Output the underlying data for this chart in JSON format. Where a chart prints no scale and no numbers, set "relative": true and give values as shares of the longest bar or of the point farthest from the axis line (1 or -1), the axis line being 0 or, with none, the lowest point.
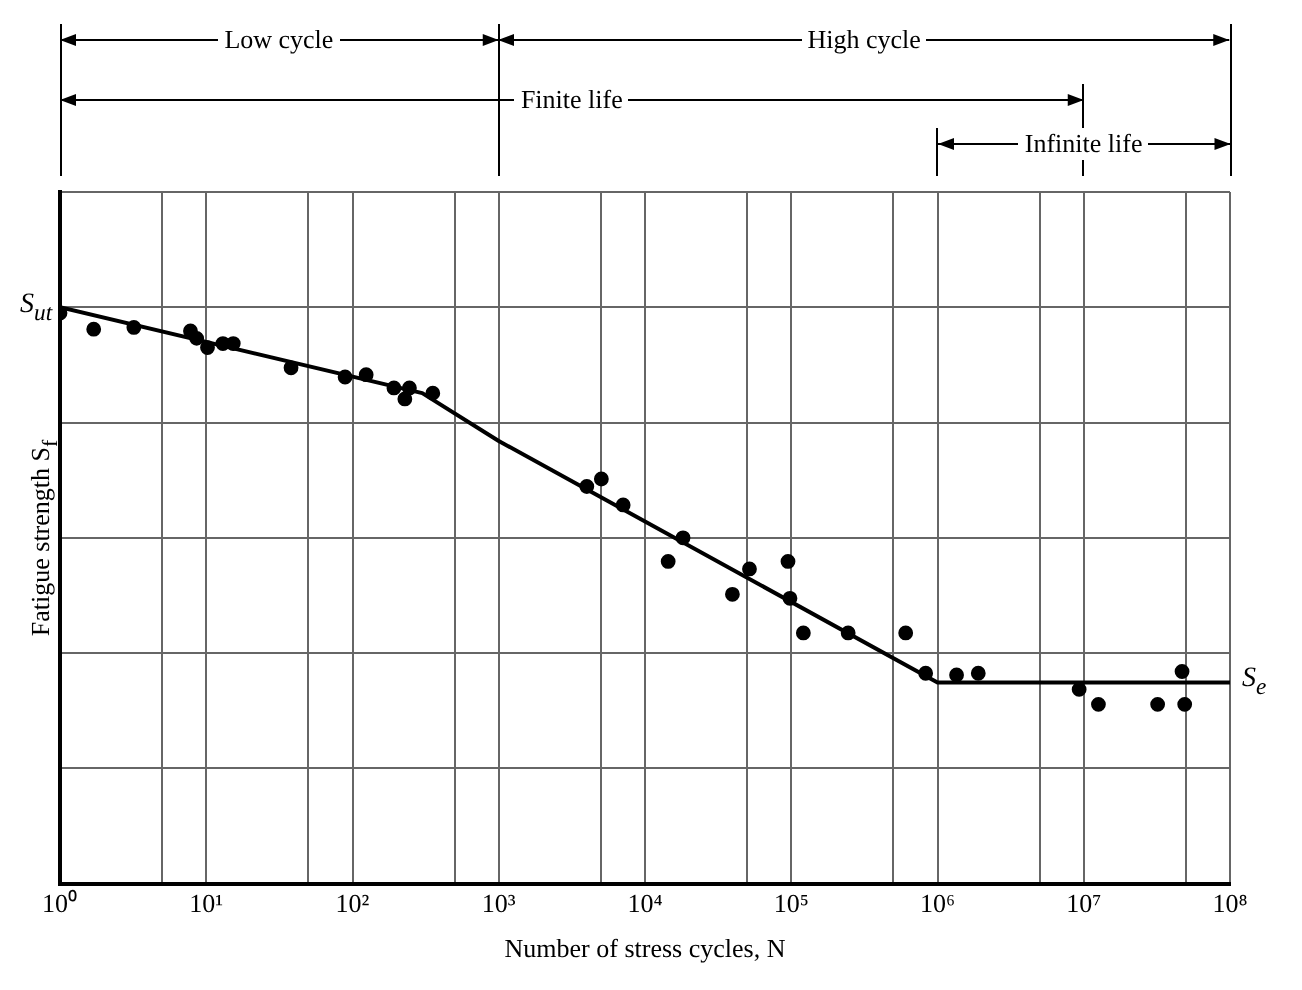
{
  "chart_data": {
    "type": "scatter",
    "relative": true,
    "xlabel": "Number of stress cycles, N",
    "ylabel": "Fatigue strength S$_{f}$",
    "log": "x",
    "grid": true,
    "xlim": [
      1,
      100000000
    ],
    "xticks": [
      {
        "value": 1,
        "label": "10⁰"
      },
      {
        "value": 5,
        "label": null
      },
      {
        "value": 10,
        "label": "10¹"
      },
      {
        "value": 50,
        "label": null
      },
      {
        "value": 100,
        "label": "10²"
      },
      {
        "value": 500,
        "label": null
      },
      {
        "value": 1000,
        "label": "10³"
      },
      {
        "value": 5000,
        "label": null
      },
      {
        "value": 10000,
        "label": "10⁴"
      },
      {
        "value": 50000,
        "label": null
      },
      {
        "value": 100000,
        "label": "10⁵"
      },
      {
        "value": 500000,
        "label": null
      },
      {
        "value": 1000000,
        "label": "10⁶"
      },
      {
        "value": 5000000,
        "label": null
      },
      {
        "value": 10000000,
        "label": "10⁷"
      },
      {
        "value": 50000000,
        "label": null
      },
      {
        "value": 100000000,
        "label": "10⁸"
      }
    ],
    "series": [
      {
        "type": "line",
        "color": "#000000",
        "x": [
          1,
          300,
          1000,
          1000000,
          100000000
        ],
        "values": [
          1,
          0.851,
          0.768,
          0.349,
          0.349
        ]
      },
      {
        "type": "scatter",
        "color": "#000000",
        "marker": "circle",
        "x": [
          1,
          1.7,
          3.2,
          7.8,
          8.6,
          10.2,
          13,
          15.3,
          38,
          89,
          124,
          192,
          245,
          228,
          354,
          4000,
          5030,
          7090,
          14400,
          18200,
          39600,
          51800,
          95000,
          98000,
          121000,
          245000,
          606000,
          830000,
          1350000,
          1900000,
          9300000,
          12600000,
          32000000,
          49000000,
          47000000
        ],
        "values": [
          0.99,
          0.962,
          0.965,
          0.959,
          0.946,
          0.93,
          0.937,
          0.937,
          0.895,
          0.879,
          0.883,
          0.86,
          0.86,
          0.841,
          0.851,
          0.689,
          0.702,
          0.657,
          0.559,
          0.6,
          0.502,
          0.546,
          0.559,
          0.495,
          0.435,
          0.435,
          0.435,
          0.365,
          0.362,
          0.365,
          0.337,
          0.311,
          0.311,
          0.311,
          0.368
        ]
      }
    ],
    "annotations": [
      "Low cycle",
      "High cycle",
      "Finite life",
      "Infinite life",
      {
        "text": "S$_{ut}$",
        "x": 1,
        "y": 1
      },
      {
        "text": "S$_{e}$",
        "x": 100000000,
        "y": 0.349
      }
    ]
  }
}
